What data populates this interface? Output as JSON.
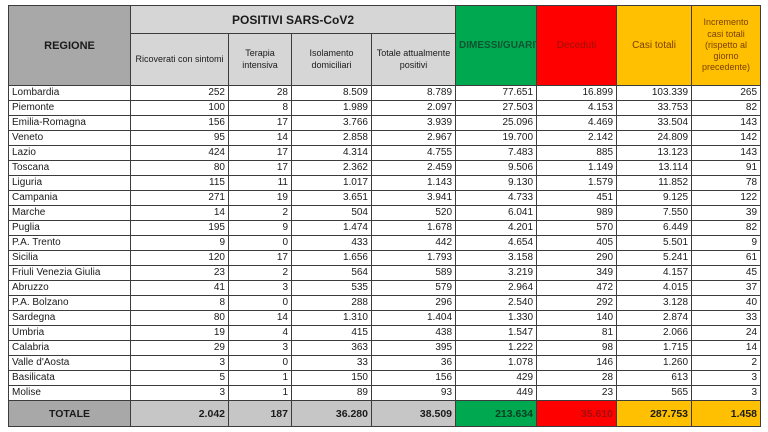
{
  "colors": {
    "green": "#00a850",
    "red": "#fe0000",
    "yellow": "#fec000",
    "header_gray": "#a8a8a8",
    "subheader_gray": "#d6d6d6",
    "totale_gray": "#c6c6c6"
  },
  "table": {
    "header": {
      "regione": "REGIONE",
      "positivi_group": "POSITIVI SARS-CoV2",
      "sub": [
        "Ricoverati con sintomi",
        "Terapia intensiva",
        "Isolamento domiciliari",
        "Totale attualmente positivi"
      ],
      "dimessi": "DIMESSI/GUARITI",
      "deceduti": "Deceduti",
      "casi_totali": "Casi totali",
      "incremento": "Incremento casi totali (rispetto al giorno precedente)"
    },
    "rows": [
      {
        "region": "Lombardia",
        "values": [
          "252",
          "28",
          "8.509",
          "8.789",
          "77.651",
          "16.899",
          "103.339",
          "265"
        ]
      },
      {
        "region": "Piemonte",
        "values": [
          "100",
          "8",
          "1.989",
          "2.097",
          "27.503",
          "4.153",
          "33.753",
          "82"
        ]
      },
      {
        "region": "Emilia-Romagna",
        "values": [
          "156",
          "17",
          "3.766",
          "3.939",
          "25.096",
          "4.469",
          "33.504",
          "143"
        ]
      },
      {
        "region": "Veneto",
        "values": [
          "95",
          "14",
          "2.858",
          "2.967",
          "19.700",
          "2.142",
          "24.809",
          "142"
        ]
      },
      {
        "region": "Lazio",
        "values": [
          "424",
          "17",
          "4.314",
          "4.755",
          "7.483",
          "885",
          "13.123",
          "143"
        ]
      },
      {
        "region": "Toscana",
        "values": [
          "80",
          "17",
          "2.362",
          "2.459",
          "9.506",
          "1.149",
          "13.114",
          "91"
        ]
      },
      {
        "region": "Liguria",
        "values": [
          "115",
          "11",
          "1.017",
          "1.143",
          "9.130",
          "1.579",
          "11.852",
          "78"
        ]
      },
      {
        "region": "Campania",
        "values": [
          "271",
          "19",
          "3.651",
          "3.941",
          "4.733",
          "451",
          "9.125",
          "122"
        ]
      },
      {
        "region": "Marche",
        "values": [
          "14",
          "2",
          "504",
          "520",
          "6.041",
          "989",
          "7.550",
          "39"
        ]
      },
      {
        "region": "Puglia",
        "values": [
          "195",
          "9",
          "1.474",
          "1.678",
          "4.201",
          "570",
          "6.449",
          "82"
        ]
      },
      {
        "region": "P.A. Trento",
        "values": [
          "9",
          "0",
          "433",
          "442",
          "4.654",
          "405",
          "5.501",
          "9"
        ]
      },
      {
        "region": "Sicilia",
        "values": [
          "120",
          "17",
          "1.656",
          "1.793",
          "3.158",
          "290",
          "5.241",
          "61"
        ]
      },
      {
        "region": "Friuli Venezia Giulia",
        "values": [
          "23",
          "2",
          "564",
          "589",
          "3.219",
          "349",
          "4.157",
          "45"
        ]
      },
      {
        "region": "Abruzzo",
        "values": [
          "41",
          "3",
          "535",
          "579",
          "2.964",
          "472",
          "4.015",
          "37"
        ]
      },
      {
        "region": "P.A. Bolzano",
        "values": [
          "8",
          "0",
          "288",
          "296",
          "2.540",
          "292",
          "3.128",
          "40"
        ]
      },
      {
        "region": "Sardegna",
        "values": [
          "80",
          "14",
          "1.310",
          "1.404",
          "1.330",
          "140",
          "2.874",
          "33"
        ]
      },
      {
        "region": "Umbria",
        "values": [
          "19",
          "4",
          "415",
          "438",
          "1.547",
          "81",
          "2.066",
          "24"
        ]
      },
      {
        "region": "Calabria",
        "values": [
          "29",
          "3",
          "363",
          "395",
          "1.222",
          "98",
          "1.715",
          "14"
        ]
      },
      {
        "region": "Valle d'Aosta",
        "values": [
          "3",
          "0",
          "33",
          "36",
          "1.078",
          "146",
          "1.260",
          "2"
        ]
      },
      {
        "region": "Basilicata",
        "values": [
          "5",
          "1",
          "150",
          "156",
          "429",
          "28",
          "613",
          "3"
        ]
      },
      {
        "region": "Molise",
        "values": [
          "3",
          "1",
          "89",
          "93",
          "449",
          "23",
          "565",
          "3"
        ]
      }
    ],
    "totale": {
      "label": "TOTALE",
      "values": [
        "2.042",
        "187",
        "36.280",
        "38.509",
        "213.634",
        "35.610",
        "287.753",
        "1.458"
      ]
    }
  }
}
